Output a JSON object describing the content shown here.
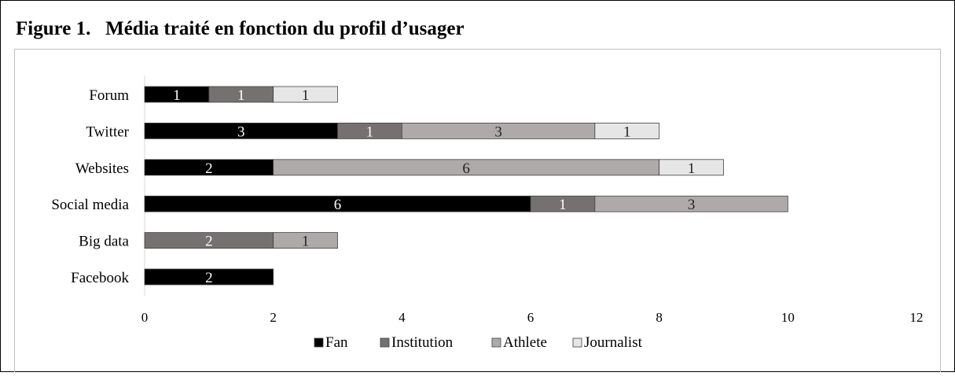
{
  "chart_data": {
    "type": "stacked_bar_horizontal",
    "title": "Figure 1.   Média traité en fonction du profil d’usager",
    "categories": [
      "Forum",
      "Twitter",
      "Websites",
      "Social media",
      "Big data",
      "Facebook"
    ],
    "series": [
      {
        "name": "Fan",
        "color": "#000000",
        "values": [
          1,
          3,
          2,
          6,
          null,
          2
        ]
      },
      {
        "name": "Institution",
        "color": "#767171",
        "values": [
          1,
          1,
          null,
          1,
          2,
          null
        ]
      },
      {
        "name": "Athlete",
        "color": "#aeaaaa",
        "values": [
          null,
          3,
          6,
          3,
          1,
          null
        ]
      },
      {
        "name": "Journalist",
        "color": "#e7e6e6",
        "values": [
          1,
          1,
          1,
          null,
          null,
          null
        ]
      }
    ],
    "xlim": [
      0,
      12
    ],
    "xticks": [
      0,
      2,
      4,
      6,
      8,
      10,
      12
    ],
    "legend": "bottom"
  }
}
